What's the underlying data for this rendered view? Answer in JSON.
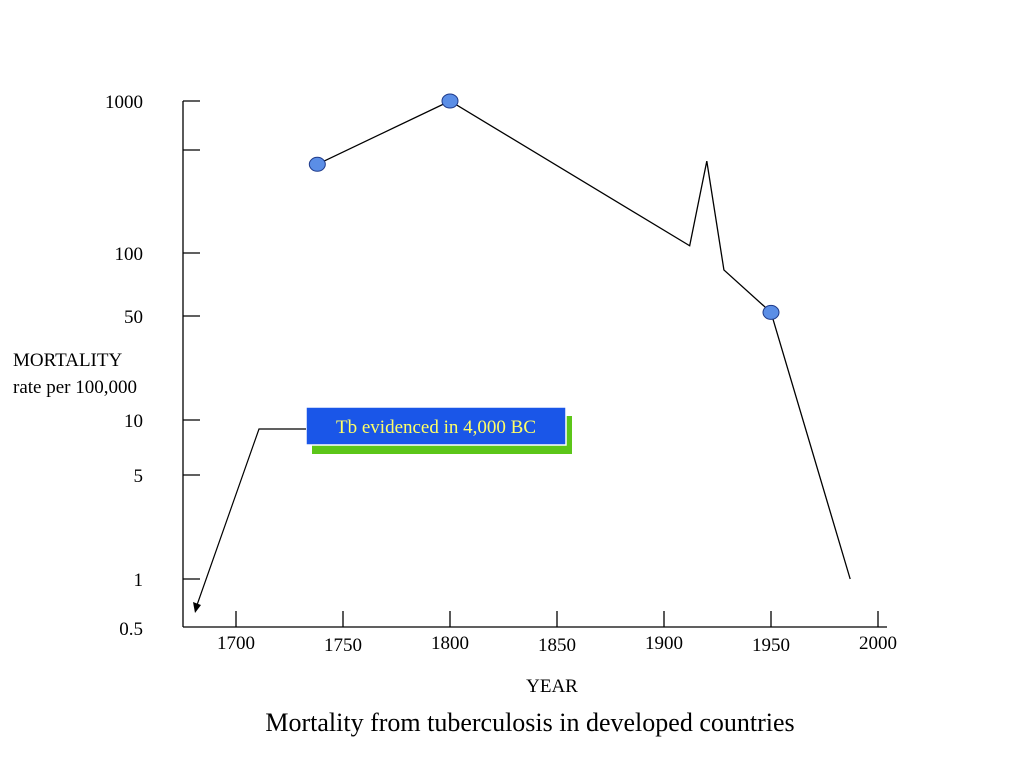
{
  "chart_data": {
    "type": "line",
    "title": "Mortality from tuberculosis in developed countries",
    "xlabel": "YEAR",
    "ylabel": "MORTALITY rate per 100,000",
    "ylabel_lines": [
      "MORTALITY",
      "rate per 100,000"
    ],
    "yscale": "log",
    "xlim": [
      1680,
      2003
    ],
    "ylim": [
      0.5,
      1000
    ],
    "x_ticks": [
      "1700",
      "1750",
      "1800",
      "1850",
      "1900",
      "1950",
      "2000"
    ],
    "y_ticks": [
      "0.5",
      "1",
      "5",
      "10",
      "50",
      "100",
      "1000"
    ],
    "extra_y_ticks": [
      500
    ],
    "grid": false,
    "series": [
      {
        "x": [
          1738,
          1800,
          1912,
          1920,
          1928,
          1950,
          1987
        ],
        "y": [
          400,
          1000,
          112,
          420,
          83,
          52,
          1.0
        ],
        "markers": [
          [
            1738,
            400
          ],
          [
            1800,
            1000
          ],
          [
            1950,
            52
          ]
        ]
      }
    ],
    "annotations": [
      {
        "text": "Tb evidenced in 4,000 BC",
        "points_to": [
          1685,
          0.5
        ]
      }
    ],
    "colors": {
      "line": "#000000",
      "marker_fill": "#5b8ee6",
      "marker_stroke": "#1e3a8a",
      "callout_fill": "#1a56e8",
      "callout_text": "#ffff66",
      "callout_shadow": "#5cc619"
    }
  }
}
